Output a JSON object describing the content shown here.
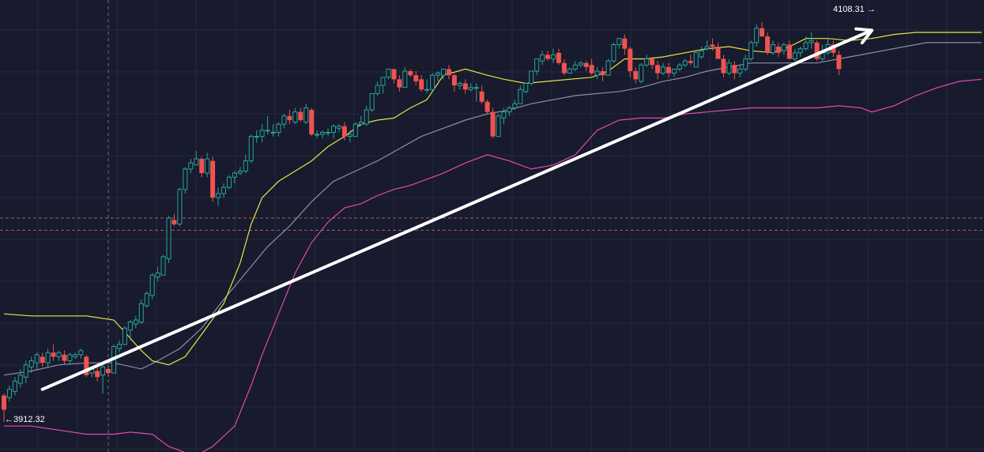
{
  "chart_data": {
    "type": "candlestick",
    "colors": {
      "background": "#181a2d",
      "grid": "#262a40",
      "up": "#26a69a",
      "down": "#ef5350",
      "bb_upper": "#e6e645",
      "bb_middle": "#8f8fa6",
      "bb_lower": "#e04bb4",
      "crosshair": "#6c7086",
      "dashed_level": "#d96868",
      "trend_arrow": "#ffffff"
    },
    "y_range": [
      3900,
      4115
    ],
    "high_label": "4108.31",
    "low_label": "3912.32",
    "candles": [
      [
        3925,
        3918,
        3926,
        3912
      ],
      [
        3924,
        3928,
        3930,
        3922
      ],
      [
        3927,
        3932,
        3934,
        3925
      ],
      [
        3931,
        3935,
        3938,
        3929
      ],
      [
        3934,
        3940,
        3942,
        3931
      ],
      [
        3939,
        3942,
        3944,
        3936
      ],
      [
        3941,
        3945,
        3946,
        3938
      ],
      [
        3944,
        3941,
        3946,
        3939
      ],
      [
        3941,
        3946,
        3948,
        3939
      ],
      [
        3946,
        3944,
        3950,
        3942
      ],
      [
        3944,
        3946,
        3947,
        3942
      ],
      [
        3945,
        3942,
        3947,
        3940
      ],
      [
        3942,
        3945,
        3946,
        3940
      ],
      [
        3944,
        3945,
        3946,
        3943
      ],
      [
        3945,
        3947,
        3948,
        3943
      ],
      [
        3944,
        3935,
        3945,
        3934
      ],
      [
        3936,
        3938,
        3939,
        3934
      ],
      [
        3937,
        3934,
        3940,
        3932
      ],
      [
        3935,
        3939,
        3940,
        3926
      ],
      [
        3938,
        3936,
        3940,
        3934
      ],
      [
        3936,
        3949,
        3950,
        3936
      ],
      [
        3948,
        3950,
        3952,
        3946
      ],
      [
        3950,
        3958,
        3959,
        3950
      ],
      [
        3957,
        3961,
        3962,
        3952
      ],
      [
        3960,
        3962,
        3964,
        3958
      ],
      [
        3961,
        3970,
        3972,
        3960
      ],
      [
        3969,
        3975,
        3976,
        3968
      ],
      [
        3974,
        3984,
        3985,
        3972
      ],
      [
        3983,
        3985,
        3988,
        3981
      ],
      [
        3984,
        3993,
        3994,
        3984
      ],
      [
        3992,
        4012,
        4013,
        3990
      ],
      [
        4011,
        4009,
        4014,
        4008
      ],
      [
        4009,
        4026,
        4027,
        4008
      ],
      [
        4026,
        4036,
        4037,
        4024
      ],
      [
        4036,
        4039,
        4041,
        4034
      ],
      [
        4038,
        4041,
        4045,
        4038
      ],
      [
        4041,
        4034,
        4042,
        4032
      ],
      [
        4034,
        4041,
        4044,
        4032
      ],
      [
        4040,
        4022,
        4042,
        4020
      ],
      [
        4022,
        4024,
        4027,
        4018
      ],
      [
        4024,
        4027,
        4029,
        4022
      ],
      [
        4027,
        4032,
        4033,
        4026
      ],
      [
        4032,
        4034,
        4035,
        4029
      ],
      [
        4034,
        4035,
        4037,
        4033
      ],
      [
        4035,
        4040,
        4043,
        4034
      ],
      [
        4040,
        4052,
        4053,
        4039
      ],
      [
        4052,
        4052,
        4055,
        4049
      ],
      [
        4052,
        4055,
        4058,
        4049
      ],
      [
        4055,
        4055,
        4062,
        4053
      ],
      [
        4054,
        4054,
        4058,
        4052
      ],
      [
        4054,
        4058,
        4059,
        4052
      ],
      [
        4058,
        4062,
        4063,
        4056
      ],
      [
        4062,
        4060,
        4065,
        4058
      ],
      [
        4059,
        4064,
        4066,
        4058
      ],
      [
        4064,
        4060,
        4066,
        4059
      ],
      [
        4059,
        4066,
        4068,
        4058
      ],
      [
        4065,
        4053,
        4066,
        4052
      ],
      [
        4053,
        4053,
        4055,
        4051
      ],
      [
        4053,
        4054,
        4055,
        4051
      ],
      [
        4054,
        4054,
        4056,
        4052
      ],
      [
        4054,
        4057,
        4058,
        4051
      ],
      [
        4056,
        4057,
        4058,
        4054
      ],
      [
        4057,
        4052,
        4059,
        4050
      ],
      [
        4052,
        4053,
        4055,
        4049
      ],
      [
        4052,
        4058,
        4059,
        4052
      ],
      [
        4058,
        4059,
        4062,
        4057
      ],
      [
        4058,
        4065,
        4067,
        4057
      ],
      [
        4065,
        4073,
        4073,
        4064
      ],
      [
        4073,
        4077,
        4079,
        4072
      ],
      [
        4077,
        4081,
        4081,
        4073
      ],
      [
        4081,
        4085,
        4085,
        4080
      ],
      [
        4085,
        4080,
        4085,
        4078
      ],
      [
        4080,
        4076,
        4082,
        4074
      ],
      [
        4076,
        4084,
        4086,
        4076
      ],
      [
        4084,
        4082,
        4085,
        4081
      ],
      [
        4082,
        4079,
        4084,
        4077
      ],
      [
        4080,
        4075,
        4082,
        4074
      ],
      [
        4075,
        4075,
        4080,
        4073
      ],
      [
        4075,
        4082,
        4083,
        4074
      ],
      [
        4082,
        4083,
        4084,
        4079
      ],
      [
        4082,
        4085,
        4085,
        4080
      ],
      [
        4085,
        4082,
        4087,
        4080
      ],
      [
        4082,
        4077,
        4083,
        4074
      ],
      [
        4077,
        4078,
        4079,
        4075
      ],
      [
        4078,
        4075,
        4080,
        4073
      ],
      [
        4075,
        4076,
        4078,
        4074
      ],
      [
        4076,
        4076,
        4078,
        4069
      ],
      [
        4074,
        4069,
        4077,
        4068
      ],
      [
        4069,
        4064,
        4070,
        4063
      ],
      [
        4064,
        4052,
        4066,
        4051
      ],
      [
        4052,
        4062,
        4063,
        4052
      ],
      [
        4061,
        4064,
        4066,
        4058
      ],
      [
        4064,
        4066,
        4067,
        4062
      ],
      [
        4066,
        4068,
        4070,
        4065
      ],
      [
        4068,
        4075,
        4077,
        4068
      ],
      [
        4074,
        4078,
        4078,
        4073
      ],
      [
        4078,
        4084,
        4084,
        4077
      ],
      [
        4084,
        4090,
        4090,
        4082
      ],
      [
        4089,
        4092,
        4094,
        4087
      ],
      [
        4092,
        4090,
        4094,
        4089
      ],
      [
        4090,
        4092,
        4095,
        4088
      ],
      [
        4093,
        4088,
        4095,
        4087
      ],
      [
        4088,
        4083,
        4090,
        4082
      ],
      [
        4083,
        4085,
        4086,
        4083
      ],
      [
        4085,
        4087,
        4089,
        4084
      ],
      [
        4087,
        4088,
        4089,
        4086
      ],
      [
        4088,
        4086,
        4089,
        4084
      ],
      [
        4087,
        4083,
        4090,
        4082
      ],
      [
        4082,
        4084,
        4086,
        4080
      ],
      [
        4084,
        4082,
        4086,
        4079
      ],
      [
        4082,
        4089,
        4090,
        4082
      ],
      [
        4089,
        4097,
        4098,
        4088
      ],
      [
        4097,
        4100,
        4100,
        4095
      ],
      [
        4100,
        4095,
        4102,
        4092
      ],
      [
        4095,
        4084,
        4096,
        4081
      ],
      [
        4084,
        4080,
        4086,
        4078
      ],
      [
        4079,
        4087,
        4088,
        4078
      ],
      [
        4087,
        4090,
        4092,
        4086
      ],
      [
        4090,
        4087,
        4091,
        4085
      ],
      [
        4087,
        4083,
        4089,
        4080
      ],
      [
        4083,
        4086,
        4088,
        4082
      ],
      [
        4086,
        4083,
        4088,
        4081
      ],
      [
        4083,
        4085,
        4085,
        4081
      ],
      [
        4085,
        4087,
        4088,
        4084
      ],
      [
        4087,
        4089,
        4090,
        4086
      ],
      [
        4089,
        4088,
        4092,
        4087
      ],
      [
        4086,
        4093,
        4094,
        4086
      ],
      [
        4091,
        4094,
        4096,
        4090
      ],
      [
        4095,
        4096,
        4099,
        4094
      ],
      [
        4097,
        4096,
        4100,
        4094
      ],
      [
        4096,
        4090,
        4098,
        4090
      ],
      [
        4090,
        4083,
        4092,
        4081
      ],
      [
        4083,
        4088,
        4090,
        4082
      ],
      [
        4087,
        4083,
        4089,
        4080
      ],
      [
        4083,
        4085,
        4087,
        4081
      ],
      [
        4085,
        4090,
        4092,
        4084
      ],
      [
        4090,
        4098,
        4099,
        4089
      ],
      [
        4098,
        4105,
        4107,
        4096
      ],
      [
        4105,
        4101,
        4108,
        4101
      ],
      [
        4101,
        4093,
        4103,
        4092
      ],
      [
        4093,
        4097,
        4099,
        4092
      ],
      [
        4096,
        4093,
        4098,
        4091
      ],
      [
        4094,
        4097,
        4098,
        4092
      ],
      [
        4097,
        4090,
        4099,
        4090
      ],
      [
        4090,
        4093,
        4095,
        4089
      ],
      [
        4093,
        4095,
        4096,
        4091
      ],
      [
        4095,
        4098,
        4101,
        4094
      ],
      [
        4098,
        4099,
        4103,
        4095
      ],
      [
        4098,
        4090,
        4099,
        4089
      ],
      [
        4090,
        4093,
        4097,
        4089
      ],
      [
        4093,
        4097,
        4100,
        4092
      ],
      [
        4097,
        4093,
        4099,
        4091
      ],
      [
        4092,
        4085,
        4094,
        4082
      ]
    ],
    "bollinger": {
      "upper": [
        [
          0,
          3965
        ],
        [
          5,
          3964
        ],
        [
          10,
          3964
        ],
        [
          15,
          3964
        ],
        [
          20,
          3962
        ],
        [
          22,
          3956
        ],
        [
          25,
          3947
        ],
        [
          27,
          3942
        ],
        [
          30,
          3940
        ],
        [
          33,
          3944
        ],
        [
          36,
          3955
        ],
        [
          40,
          3970
        ],
        [
          43,
          3990
        ],
        [
          45,
          4009
        ],
        [
          47,
          4022
        ],
        [
          50,
          4030
        ],
        [
          53,
          4035
        ],
        [
          56,
          4040
        ],
        [
          59,
          4047
        ],
        [
          62,
          4052
        ],
        [
          65,
          4058
        ],
        [
          68,
          4060
        ],
        [
          71,
          4061
        ],
        [
          74,
          4066
        ],
        [
          77,
          4070
        ],
        [
          80,
          4082
        ],
        [
          84,
          4085
        ],
        [
          88,
          4082
        ],
        [
          91,
          4080
        ],
        [
          95,
          4078
        ],
        [
          99,
          4079
        ],
        [
          103,
          4080
        ],
        [
          107,
          4081
        ],
        [
          110,
          4084
        ],
        [
          113,
          4090
        ],
        [
          117,
          4090
        ],
        [
          120,
          4091
        ],
        [
          124,
          4093
        ],
        [
          128,
          4095
        ],
        [
          132,
          4096
        ],
        [
          136,
          4094
        ],
        [
          140,
          4093
        ],
        [
          143,
          4096
        ],
        [
          146,
          4100
        ],
        [
          150,
          4100
        ],
        [
          154,
          4099
        ],
        [
          158,
          4100
        ],
        [
          162,
          4102
        ],
        [
          166,
          4103
        ],
        [
          170,
          4103
        ],
        [
          174,
          4103
        ],
        [
          178,
          4103
        ]
      ],
      "middle": [
        [
          0,
          3935
        ],
        [
          5,
          3937
        ],
        [
          10,
          3940
        ],
        [
          15,
          3941
        ],
        [
          20,
          3941
        ],
        [
          25,
          3938
        ],
        [
          28,
          3942
        ],
        [
          32,
          3948
        ],
        [
          36,
          3958
        ],
        [
          40,
          3972
        ],
        [
          44,
          3985
        ],
        [
          48,
          3998
        ],
        [
          52,
          4008
        ],
        [
          56,
          4020
        ],
        [
          60,
          4030
        ],
        [
          64,
          4035
        ],
        [
          68,
          4040
        ],
        [
          72,
          4046
        ],
        [
          76,
          4052
        ],
        [
          80,
          4056
        ],
        [
          84,
          4060
        ],
        [
          88,
          4063
        ],
        [
          92,
          4065
        ],
        [
          96,
          4068
        ],
        [
          100,
          4070
        ],
        [
          104,
          4072
        ],
        [
          108,
          4073
        ],
        [
          112,
          4074
        ],
        [
          116,
          4076
        ],
        [
          120,
          4079
        ],
        [
          124,
          4081
        ],
        [
          128,
          4084
        ],
        [
          132,
          4086
        ],
        [
          136,
          4088
        ],
        [
          140,
          4088
        ],
        [
          144,
          4088
        ],
        [
          148,
          4088
        ],
        [
          152,
          4090
        ],
        [
          156,
          4092
        ],
        [
          160,
          4094
        ],
        [
          164,
          4096
        ],
        [
          168,
          4098
        ],
        [
          172,
          4098
        ],
        [
          178,
          4098
        ]
      ],
      "lower": [
        [
          0,
          3910
        ],
        [
          5,
          3910
        ],
        [
          10,
          3908
        ],
        [
          15,
          3906
        ],
        [
          20,
          3906
        ],
        [
          23,
          3907
        ],
        [
          27,
          3906
        ],
        [
          30,
          3900
        ],
        [
          33,
          3897
        ],
        [
          36,
          3897
        ],
        [
          38,
          3900
        ],
        [
          42,
          3910
        ],
        [
          45,
          3930
        ],
        [
          47,
          3945
        ],
        [
          50,
          3965
        ],
        [
          53,
          3985
        ],
        [
          56,
          4000
        ],
        [
          59,
          4010
        ],
        [
          62,
          4017
        ],
        [
          65,
          4019
        ],
        [
          68,
          4023
        ],
        [
          71,
          4026
        ],
        [
          74,
          4028
        ],
        [
          77,
          4031
        ],
        [
          80,
          4034
        ],
        [
          84,
          4039
        ],
        [
          88,
          4043
        ],
        [
          92,
          4040
        ],
        [
          96,
          4036
        ],
        [
          100,
          4038
        ],
        [
          104,
          4043
        ],
        [
          108,
          4055
        ],
        [
          112,
          4060
        ],
        [
          116,
          4061
        ],
        [
          120,
          4061
        ],
        [
          124,
          4063
        ],
        [
          128,
          4064
        ],
        [
          132,
          4065
        ],
        [
          136,
          4066
        ],
        [
          140,
          4066
        ],
        [
          144,
          4066
        ],
        [
          148,
          4066
        ],
        [
          152,
          4067
        ],
        [
          156,
          4066
        ],
        [
          158,
          4064
        ],
        [
          162,
          4067
        ],
        [
          166,
          4072
        ],
        [
          170,
          4076
        ],
        [
          174,
          4079
        ],
        [
          178,
          4080
        ]
      ]
    },
    "trend_arrow": {
      "from": [
        7,
        3928
      ],
      "to": [
        158,
        4104
      ]
    },
    "crosshair_bar": 19,
    "dashed_levels": [
      4006,
      4012
    ]
  }
}
